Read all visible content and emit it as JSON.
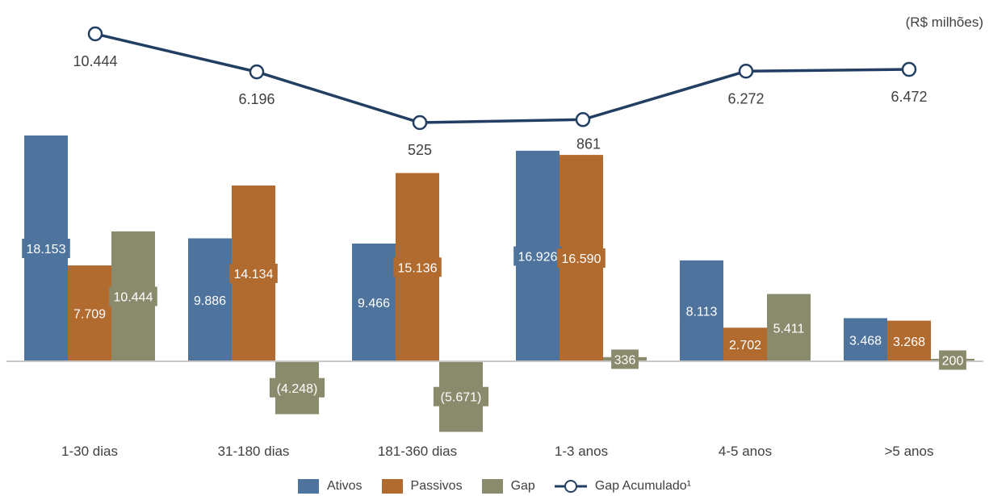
{
  "unit_label": "(R$ milhões)",
  "colors": {
    "ativos": "#4e739c",
    "passivos": "#b16b2e",
    "gap": "#8a8b6d",
    "line": "#223f63"
  },
  "chart_data": {
    "type": "bar",
    "categories": [
      "1-30 dias",
      "31-180 dias",
      "181-360 dias",
      "1-3 anos",
      "4-5 anos",
      ">5 anos"
    ],
    "series": [
      {
        "name": "Ativos",
        "values": [
          18153,
          9886,
          9466,
          16926,
          8113,
          3468
        ],
        "labels": [
          "18.153",
          "9.886",
          "9.466",
          "16.926",
          "8.113",
          "3.468"
        ]
      },
      {
        "name": "Passivos",
        "values": [
          7709,
          14134,
          15136,
          16590,
          2702,
          3268
        ],
        "labels": [
          "7.709",
          "14.134",
          "15.136",
          "16.590",
          "2.702",
          "3.268"
        ]
      },
      {
        "name": "Gap",
        "values": [
          10444,
          -4248,
          -5671,
          336,
          5411,
          200
        ],
        "labels": [
          "10.444",
          "(4.248)",
          "(5.671)",
          "336",
          "5.411",
          "200"
        ]
      }
    ],
    "line": {
      "name": "Gap Acumulado¹",
      "values": [
        10444,
        6196,
        525,
        861,
        6272,
        6472
      ],
      "labels": [
        "10.444",
        "6.196",
        "525",
        "861",
        "6.272",
        "6.472"
      ]
    }
  }
}
